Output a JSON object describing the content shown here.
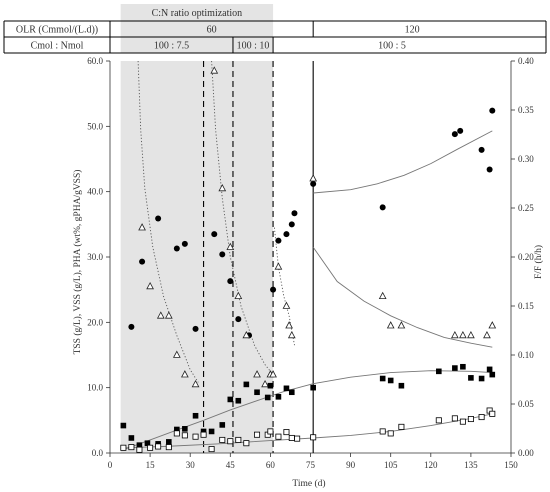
{
  "chart_data": {
    "type": "scatter",
    "header_table": {
      "banner": "C:N ratio optimization",
      "rows": [
        {
          "label": "OLR (Cmmol/(L.d))",
          "cells": [
            {
              "text": "60",
              "from": 0,
              "to": 76
            },
            {
              "text": "120",
              "from": 76,
              "to": 150
            }
          ]
        },
        {
          "label": "Cmol : Nmol",
          "cells": [
            {
              "text": "100 : 7.5",
              "from": 0,
              "to": 46
            },
            {
              "text": "100 : 10",
              "from": 46,
              "to": 61
            },
            {
              "text": "100 : 5",
              "from": 61,
              "to": 150
            }
          ]
        }
      ]
    },
    "shaded_x_range": [
      4,
      61
    ],
    "shaded_bands_header": [
      [
        4,
        61
      ]
    ],
    "shaded_bands_row": [
      [
        4,
        46
      ],
      [
        46,
        61
      ]
    ],
    "x_axis": {
      "label": "Time (d)",
      "range": [
        0,
        150
      ],
      "ticks": [
        0,
        15,
        30,
        45,
        60,
        75,
        90,
        105,
        120,
        135,
        150
      ]
    },
    "y_left": {
      "label": "TSS (g/L), VSS (g/L), PHA (wt%, gPHA/gVSS)",
      "range": [
        0,
        60
      ],
      "ticks": [
        "0.0",
        "10.0",
        "20.0",
        "30.0",
        "40.0",
        "50.0",
        "60.0"
      ]
    },
    "y_right": {
      "label": "F/F (h/h)",
      "range": [
        0,
        0.4
      ],
      "ticks": [
        "0.00",
        "0.05",
        "0.10",
        "0.15",
        "0.20",
        "0.25",
        "0.30",
        "0.35",
        "0.40"
      ]
    },
    "dashed_vertical_lines": [
      35,
      46,
      61
    ],
    "solid_vertical_lines": [
      76
    ],
    "series": [
      {
        "marker": "filled-circle",
        "axis": "left",
        "points": [
          [
            8,
            19.3
          ],
          [
            12,
            29.3
          ],
          [
            18,
            35.9
          ],
          [
            25,
            31.3
          ],
          [
            28,
            32.0
          ],
          [
            32,
            19.0
          ],
          [
            39,
            33.5
          ],
          [
            42,
            30.4
          ],
          [
            45,
            26.3
          ],
          [
            48,
            20.5
          ],
          [
            52,
            18.0
          ],
          [
            61,
            25.0
          ],
          [
            63,
            32.5
          ],
          [
            66,
            33.5
          ],
          [
            68,
            35.0
          ],
          [
            69,
            36.7
          ],
          [
            76,
            41.2
          ],
          [
            102,
            37.6
          ],
          [
            129,
            48.8
          ],
          [
            131,
            49.3
          ],
          [
            139,
            46.4
          ],
          [
            142,
            43.4
          ],
          [
            143,
            52.4
          ]
        ]
      },
      {
        "marker": "open-triangle",
        "axis": "right",
        "points": [
          [
            12,
            0.23
          ],
          [
            15,
            0.17
          ],
          [
            19,
            0.14
          ],
          [
            22,
            0.14
          ],
          [
            25,
            0.1
          ],
          [
            28,
            0.08
          ],
          [
            32,
            0.07
          ],
          [
            39,
            0.39
          ],
          [
            42,
            0.27
          ],
          [
            45,
            0.21
          ],
          [
            48,
            0.16
          ],
          [
            51,
            0.12
          ],
          [
            55,
            0.08
          ],
          [
            58,
            0.07
          ],
          [
            60,
            0.08
          ],
          [
            61,
            0.08
          ],
          [
            63,
            0.19
          ],
          [
            66,
            0.15
          ],
          [
            67,
            0.13
          ],
          [
            68,
            0.12
          ],
          [
            76,
            0.28
          ],
          [
            102,
            0.16
          ],
          [
            105,
            0.13
          ],
          [
            109,
            0.13
          ],
          [
            129,
            0.12
          ],
          [
            132,
            0.12
          ],
          [
            135,
            0.12
          ],
          [
            141,
            0.12
          ],
          [
            143,
            0.13
          ]
        ]
      },
      {
        "marker": "filled-square",
        "axis": "left",
        "points": [
          [
            5,
            4.2
          ],
          [
            8,
            2.3
          ],
          [
            11,
            1.2
          ],
          [
            14,
            1.5
          ],
          [
            18,
            1.4
          ],
          [
            22,
            1.7
          ],
          [
            25,
            3.6
          ],
          [
            28,
            3.7
          ],
          [
            32,
            5.7
          ],
          [
            35,
            3.3
          ],
          [
            38,
            3.3
          ],
          [
            42,
            4.3
          ],
          [
            45,
            8.2
          ],
          [
            48,
            8.0
          ],
          [
            51,
            10.5
          ],
          [
            55,
            9.3
          ],
          [
            59,
            8.5
          ],
          [
            60,
            10.3
          ],
          [
            63,
            8.6
          ],
          [
            66,
            9.9
          ],
          [
            68,
            9.3
          ],
          [
            76,
            10.0
          ],
          [
            102,
            11.4
          ],
          [
            105,
            11.1
          ],
          [
            109,
            10.3
          ],
          [
            123,
            12.5
          ],
          [
            129,
            13.0
          ],
          [
            132,
            13.2
          ],
          [
            135,
            11.5
          ],
          [
            139,
            11.4
          ],
          [
            142,
            12.8
          ],
          [
            143,
            12.0
          ]
        ]
      },
      {
        "marker": "open-square",
        "axis": "left",
        "points": [
          [
            5,
            0.8
          ],
          [
            8,
            0.9
          ],
          [
            11,
            0.5
          ],
          [
            15,
            0.8
          ],
          [
            18,
            1.0
          ],
          [
            22,
            0.9
          ],
          [
            25,
            3.0
          ],
          [
            28,
            2.7
          ],
          [
            32,
            2.5
          ],
          [
            35,
            2.8
          ],
          [
            38,
            0.6
          ],
          [
            42,
            2.0
          ],
          [
            45,
            1.8
          ],
          [
            48,
            2.0
          ],
          [
            51,
            1.5
          ],
          [
            55,
            2.8
          ],
          [
            59,
            2.8
          ],
          [
            60,
            3.3
          ],
          [
            63,
            2.5
          ],
          [
            66,
            3.2
          ],
          [
            68,
            2.3
          ],
          [
            70,
            2.2
          ],
          [
            76,
            2.4
          ],
          [
            102,
            3.3
          ],
          [
            105,
            3.0
          ],
          [
            109,
            4.0
          ],
          [
            123,
            5.0
          ],
          [
            129,
            5.3
          ],
          [
            132,
            4.8
          ],
          [
            135,
            5.2
          ],
          [
            139,
            5.5
          ],
          [
            142,
            6.5
          ],
          [
            143,
            6.0
          ]
        ]
      }
    ],
    "trend_lines": [
      {
        "style": "dotted",
        "axis": "right",
        "points": [
          [
            10.5,
            0.4
          ],
          [
            11.5,
            0.33
          ],
          [
            13,
            0.27
          ],
          [
            16,
            0.21
          ],
          [
            20,
            0.16
          ],
          [
            25,
            0.12
          ],
          [
            30,
            0.085
          ],
          [
            33,
            0.072
          ]
        ]
      },
      {
        "style": "dotted",
        "axis": "right",
        "points": [
          [
            38,
            0.4
          ],
          [
            39.5,
            0.33
          ],
          [
            42,
            0.26
          ],
          [
            45,
            0.2
          ],
          [
            49,
            0.15
          ],
          [
            54,
            0.11
          ],
          [
            58,
            0.09
          ],
          [
            61,
            0.08
          ]
        ]
      },
      {
        "style": "dotted",
        "axis": "right",
        "points": [
          [
            61.5,
            0.23
          ],
          [
            63,
            0.19
          ],
          [
            65,
            0.16
          ],
          [
            67,
            0.14
          ],
          [
            69,
            0.11
          ]
        ]
      },
      {
        "style": "solid",
        "axis": "right",
        "points": [
          [
            76,
            0.21
          ],
          [
            85,
            0.175
          ],
          [
            95,
            0.155
          ],
          [
            105,
            0.14
          ],
          [
            115,
            0.128
          ],
          [
            125,
            0.118
          ],
          [
            135,
            0.112
          ],
          [
            143,
            0.108
          ]
        ]
      },
      {
        "style": "solid",
        "axis": "left",
        "points": [
          [
            76,
            39.8
          ],
          [
            90,
            40.3
          ],
          [
            100,
            41.2
          ],
          [
            110,
            42.5
          ],
          [
            120,
            44.3
          ],
          [
            130,
            46.5
          ],
          [
            143,
            49.3
          ]
        ]
      },
      {
        "style": "solid",
        "axis": "left",
        "points": [
          [
            5,
            0.5
          ],
          [
            15,
            2.0
          ],
          [
            25,
            3.5
          ],
          [
            35,
            5.0
          ],
          [
            45,
            6.6
          ],
          [
            55,
            8.0
          ],
          [
            65,
            9.4
          ],
          [
            76,
            10.6
          ],
          [
            90,
            11.6
          ],
          [
            105,
            12.3
          ],
          [
            120,
            12.6
          ],
          [
            135,
            12.5
          ],
          [
            143,
            12.3
          ]
        ]
      },
      {
        "style": "solid",
        "axis": "left",
        "points": [
          [
            5,
            0.8
          ],
          [
            20,
            1.0
          ],
          [
            40,
            1.4
          ],
          [
            60,
            1.9
          ],
          [
            76,
            2.3
          ],
          [
            90,
            2.7
          ],
          [
            105,
            3.3
          ],
          [
            120,
            4.2
          ],
          [
            135,
            5.3
          ],
          [
            143,
            6.0
          ]
        ]
      }
    ]
  }
}
